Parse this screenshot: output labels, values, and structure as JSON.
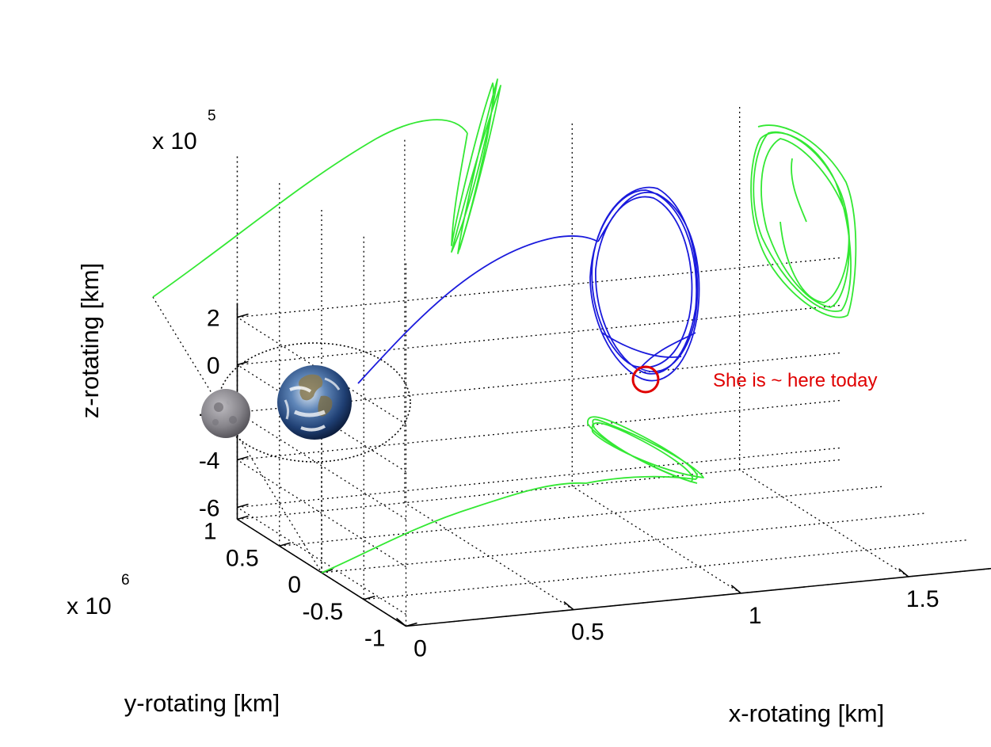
{
  "chart_data": {
    "type": "line3d",
    "x_axis": {
      "label": "x-rotating [km]",
      "ticks": [
        {
          "value": 0,
          "label": "0"
        },
        {
          "value": 0.5,
          "label": "0.5"
        },
        {
          "value": 1,
          "label": "1"
        },
        {
          "value": 1.5,
          "label": "1.5"
        }
      ]
    },
    "y_axis": {
      "label": "y-rotating [km]",
      "multiplier": {
        "base": "x 10",
        "exponent": "6"
      },
      "ticks": [
        {
          "value": -1,
          "label": "-1"
        },
        {
          "value": -0.5,
          "label": "-0.5"
        },
        {
          "value": 0,
          "label": "0"
        },
        {
          "value": 0.5,
          "label": "0.5"
        },
        {
          "value": 1,
          "label": "1"
        }
      ]
    },
    "z_axis": {
      "label": "z-rotating [km]",
      "multiplier": {
        "base": "x 10",
        "exponent": "5"
      },
      "ticks": [
        {
          "value": 2,
          "label": "2"
        },
        {
          "value": 0,
          "label": "0"
        },
        {
          "value": -2,
          "label": "-2"
        },
        {
          "value": -4,
          "label": "-4"
        },
        {
          "value": -6,
          "label": "-6"
        }
      ]
    },
    "series": [
      {
        "name": "trajectory",
        "color": "#1a1adc"
      },
      {
        "name": "projection-xz",
        "color": "#33e833"
      },
      {
        "name": "projection-yz",
        "color": "#33e833"
      },
      {
        "name": "projection-xy",
        "color": "#33e833"
      }
    ],
    "bodies": [
      {
        "name": "Earth",
        "icon": "earth-icon"
      },
      {
        "name": "Moon",
        "icon": "moon-icon"
      }
    ],
    "annotation": {
      "text": "She is ~ here today",
      "color": "#e00000"
    }
  }
}
